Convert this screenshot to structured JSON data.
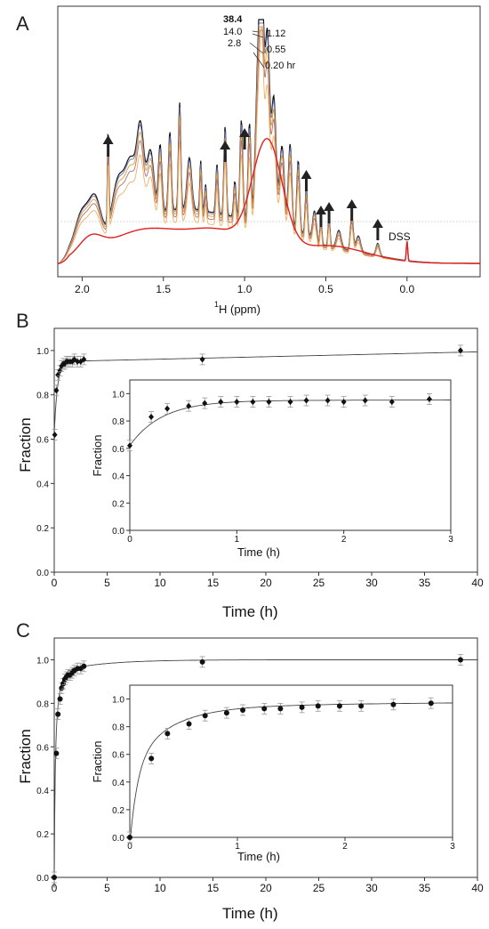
{
  "chart_data": [
    {
      "panel_label": "A",
      "type": "line",
      "xlabel_prefix": "1",
      "xlabel": "H (ppm)",
      "xlim": [
        2.15,
        -0.45
      ],
      "x_reversed": true,
      "xticks": [
        "2.0",
        "1.5",
        "1.0",
        "0.5",
        "0.0"
      ],
      "xtick_values": [
        2.0,
        1.5,
        1.0,
        0.5,
        0.0
      ],
      "time_labels": [
        "38.4",
        "14.0",
        "2.8",
        "1.12",
        "0.55",
        "0.20 hr"
      ],
      "reference_label": "DSS",
      "arrow_positions_ppm": [
        1.84,
        1.12,
        1.0,
        0.62,
        0.53,
        0.48,
        0.34,
        0.18
      ],
      "series_colors": [
        "#111111",
        "#6f78b8",
        "#e0a030",
        "#b07070",
        "#f0b060",
        "#e02020"
      ],
      "series_times_hr": [
        38.4,
        14.0,
        2.8,
        1.12,
        0.55,
        0.2
      ]
    },
    {
      "panel_label": "B",
      "type": "scatter",
      "xlabel": "Time (h)",
      "ylabel": "Fraction",
      "xlim": [
        0,
        40
      ],
      "ylim": [
        0,
        1.1
      ],
      "xticks": [
        "0",
        "5",
        "10",
        "15",
        "20",
        "25",
        "30",
        "35",
        "40"
      ],
      "yticks": [
        "0.0",
        "0.2",
        "0.4",
        "0.6",
        "0.8",
        "1.0"
      ],
      "marker": "diamond",
      "x": [
        0.05,
        0.2,
        0.35,
        0.55,
        0.7,
        0.85,
        1.0,
        1.15,
        1.3,
        1.5,
        1.7,
        1.9,
        2.2,
        2.5,
        2.8,
        14.0,
        38.4
      ],
      "y": [
        0.62,
        0.82,
        0.89,
        0.91,
        0.93,
        0.94,
        0.94,
        0.95,
        0.95,
        0.95,
        0.95,
        0.96,
        0.95,
        0.95,
        0.96,
        0.96,
        1.0
      ],
      "fit_curve": "y = 0.62 + 0.33*(1 - exp(-x/0.32)) + 0.0011*x",
      "inset": {
        "xlabel": "Time (h)",
        "ylabel": "Fraction",
        "xlim": [
          0,
          3
        ],
        "ylim": [
          0,
          1.1
        ],
        "xticks": [
          "0",
          "1",
          "2",
          "3"
        ],
        "yticks": [
          "0.0",
          "0.2",
          "0.4",
          "0.6",
          "0.8",
          "1.0"
        ],
        "x": [
          0.0,
          0.2,
          0.35,
          0.55,
          0.7,
          0.85,
          1.0,
          1.15,
          1.3,
          1.5,
          1.65,
          1.85,
          2.0,
          2.2,
          2.45,
          2.8
        ],
        "y": [
          0.62,
          0.83,
          0.89,
          0.91,
          0.93,
          0.94,
          0.94,
          0.94,
          0.94,
          0.94,
          0.95,
          0.95,
          0.94,
          0.95,
          0.94,
          0.96
        ]
      }
    },
    {
      "panel_label": "C",
      "type": "scatter",
      "xlabel": "Time (h)",
      "ylabel": "Fraction",
      "xlim": [
        0,
        40
      ],
      "ylim": [
        0,
        1.1
      ],
      "xticks": [
        "0",
        "5",
        "10",
        "15",
        "20",
        "25",
        "30",
        "35",
        "40"
      ],
      "yticks": [
        "0.0",
        "0.2",
        "0.4",
        "0.6",
        "0.8",
        "1.0"
      ],
      "marker": "circle",
      "x": [
        0.0,
        0.2,
        0.35,
        0.55,
        0.7,
        0.85,
        1.0,
        1.15,
        1.3,
        1.5,
        1.7,
        1.9,
        2.2,
        2.5,
        2.8,
        14.0,
        38.4
      ],
      "y": [
        0.0,
        0.57,
        0.75,
        0.82,
        0.87,
        0.89,
        0.91,
        0.92,
        0.93,
        0.93,
        0.94,
        0.95,
        0.96,
        0.96,
        0.97,
        0.99,
        1.0
      ],
      "fit_curve": "y = 1 - exp(-x/0.33) blended",
      "inset": {
        "xlabel": "Time (h)",
        "ylabel": "Fraction",
        "xlim": [
          0,
          3
        ],
        "ylim": [
          0,
          1.1
        ],
        "xticks": [
          "0",
          "1",
          "2",
          "3"
        ],
        "yticks": [
          "0.0",
          "0.2",
          "0.4",
          "0.6",
          "0.8",
          "1.0"
        ],
        "x": [
          0.0,
          0.2,
          0.35,
          0.55,
          0.7,
          0.9,
          1.05,
          1.25,
          1.4,
          1.6,
          1.75,
          1.95,
          2.15,
          2.45,
          2.8
        ],
        "y": [
          0.0,
          0.57,
          0.75,
          0.82,
          0.88,
          0.9,
          0.92,
          0.93,
          0.93,
          0.94,
          0.95,
          0.95,
          0.95,
          0.96,
          0.97
        ]
      }
    }
  ]
}
